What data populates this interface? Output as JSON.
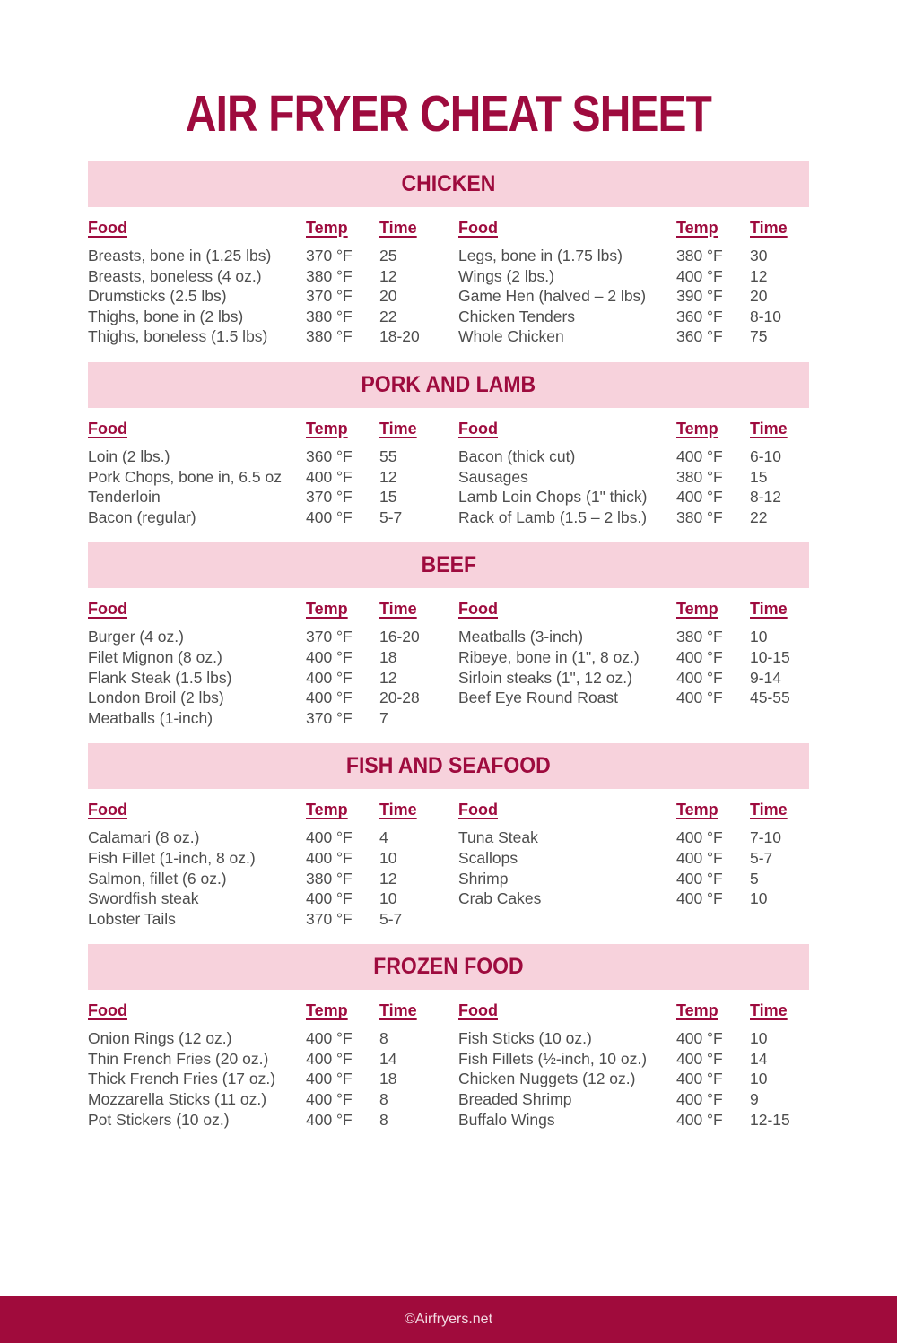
{
  "title": "AIR FRYER CHEAT SHEET",
  "columns": {
    "food": "Food",
    "temp": "Temp",
    "time": "Time"
  },
  "sections": [
    {
      "name": "CHICKEN",
      "left": [
        {
          "food": "Breasts, bone in (1.25 lbs)",
          "temp": "370 °F",
          "time": "25"
        },
        {
          "food": "Breasts, boneless (4 oz.)",
          "temp": "380 °F",
          "time": "12"
        },
        {
          "food": "Drumsticks (2.5 lbs)",
          "temp": "370 °F",
          "time": "20"
        },
        {
          "food": "Thighs, bone in (2 lbs)",
          "temp": "380 °F",
          "time": "22"
        },
        {
          "food": "Thighs, boneless (1.5 lbs)",
          "temp": "380 °F",
          "time": "18-20"
        }
      ],
      "right": [
        {
          "food": "Legs, bone in (1.75 lbs)",
          "temp": "380 °F",
          "time": "30"
        },
        {
          "food": "Wings (2 lbs.)",
          "temp": "400 °F",
          "time": "12"
        },
        {
          "food": "Game Hen (halved – 2 lbs)",
          "temp": "390 °F",
          "time": "20"
        },
        {
          "food": "Chicken Tenders",
          "temp": "360 °F",
          "time": "8-10"
        },
        {
          "food": "Whole Chicken",
          "temp": "360 °F",
          "time": "75"
        }
      ]
    },
    {
      "name": "PORK AND LAMB",
      "left": [
        {
          "food": "Loin (2 lbs.)",
          "temp": "360 °F",
          "time": "55"
        },
        {
          "food": "Pork Chops, bone in, 6.5 oz",
          "temp": "400 °F",
          "time": "12"
        },
        {
          "food": "Tenderloin",
          "temp": "370 °F",
          "time": "15"
        },
        {
          "food": "Bacon (regular)",
          "temp": "400 °F",
          "time": "5-7"
        }
      ],
      "right": [
        {
          "food": "Bacon (thick cut)",
          "temp": "400 °F",
          "time": "6-10"
        },
        {
          "food": "Sausages",
          "temp": "380 °F",
          "time": "15"
        },
        {
          "food": "Lamb Loin Chops (1\" thick)",
          "temp": "400 °F",
          "time": "8-12"
        },
        {
          "food": "Rack of Lamb (1.5 – 2 lbs.)",
          "temp": "380 °F",
          "time": "22"
        }
      ]
    },
    {
      "name": "BEEF",
      "left": [
        {
          "food": "Burger (4 oz.)",
          "temp": "370 °F",
          "time": "16-20"
        },
        {
          "food": "Filet Mignon (8 oz.)",
          "temp": "400 °F",
          "time": "18"
        },
        {
          "food": "Flank Steak (1.5 lbs)",
          "temp": "400 °F",
          "time": "12"
        },
        {
          "food": "London Broil (2 lbs)",
          "temp": "400 °F",
          "time": "20-28"
        },
        {
          "food": "Meatballs (1-inch)",
          "temp": "370 °F",
          "time": "7"
        }
      ],
      "right": [
        {
          "food": "Meatballs (3-inch)",
          "temp": "380 °F",
          "time": "10"
        },
        {
          "food": "Ribeye, bone in (1\", 8 oz.)",
          "temp": "400 °F",
          "time": "10-15"
        },
        {
          "food": "Sirloin steaks (1\", 12 oz.)",
          "temp": "400 °F",
          "time": "9-14"
        },
        {
          "food": "Beef Eye Round Roast",
          "temp": "400 °F",
          "time": "45-55"
        }
      ]
    },
    {
      "name": "FISH AND SEAFOOD",
      "left": [
        {
          "food": "Calamari (8 oz.)",
          "temp": "400 °F",
          "time": "4"
        },
        {
          "food": "Fish Fillet (1-inch, 8 oz.)",
          "temp": "400 °F",
          "time": "10"
        },
        {
          "food": "Salmon, fillet (6 oz.)",
          "temp": "380 °F",
          "time": "12"
        },
        {
          "food": "Swordfish steak",
          "temp": "400 °F",
          "time": "10"
        },
        {
          "food": "Lobster Tails",
          "temp": "370 °F",
          "time": "5-7"
        }
      ],
      "right": [
        {
          "food": "Tuna Steak",
          "temp": "400 °F",
          "time": "7-10"
        },
        {
          "food": "Scallops",
          "temp": "400 °F",
          "time": "5-7"
        },
        {
          "food": "Shrimp",
          "temp": "400 °F",
          "time": "5"
        },
        {
          "food": "Crab Cakes",
          "temp": "400 °F",
          "time": "10"
        }
      ]
    },
    {
      "name": "FROZEN FOOD",
      "left": [
        {
          "food": "Onion Rings (12 oz.)",
          "temp": "400 °F",
          "time": "8"
        },
        {
          "food": "Thin French Fries (20 oz.)",
          "temp": "400 °F",
          "time": "14"
        },
        {
          "food": "Thick French Fries (17 oz.)",
          "temp": "400 °F",
          "time": "18"
        },
        {
          "food": "Mozzarella Sticks (11 oz.)",
          "temp": "400 °F",
          "time": "8"
        },
        {
          "food": "Pot Stickers (10 oz.)",
          "temp": "400 °F",
          "time": "8"
        }
      ],
      "right": [
        {
          "food": "Fish Sticks (10 oz.)",
          "temp": "400 °F",
          "time": "10"
        },
        {
          "food": "Fish Fillets (½-inch, 10 oz.)",
          "temp": "400 °F",
          "time": "14"
        },
        {
          "food": "Chicken Nuggets (12 oz.)",
          "temp": "400 °F",
          "time": "10"
        },
        {
          "food": "Breaded Shrimp",
          "temp": "400 °F",
          "time": "9"
        },
        {
          "food": "Buffalo Wings",
          "temp": "400 °F",
          "time": "12-15"
        }
      ]
    }
  ],
  "footer": {
    "credit": "©Airfryers.net"
  },
  "colors": {
    "maroon": "#9e0b3e",
    "pink_band": "#f7d2dc",
    "body_text": "#4d4d4d",
    "footer_bg": "#a00b3c",
    "footer_text": "#f3dce3"
  }
}
